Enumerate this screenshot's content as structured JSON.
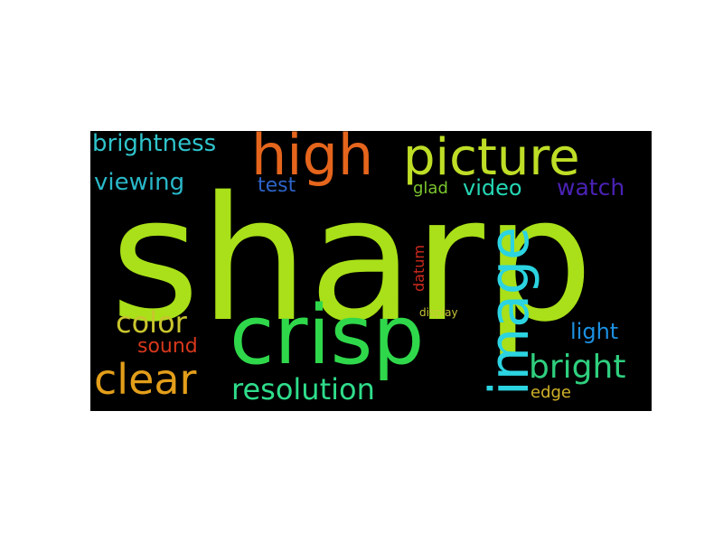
{
  "wordcloud": {
    "background": "#000000",
    "words": {
      "sharp": "sharp",
      "high": "high",
      "picture": "picture",
      "brightness": "brightness",
      "viewing": "viewing",
      "test": "test",
      "glad": "glad",
      "video": "video",
      "watch": "watch",
      "crisp": "crisp",
      "image": "image",
      "datum": "datum",
      "display": "display",
      "color": "color",
      "sound": "sound",
      "clear": "clear",
      "resolution": "resolution",
      "light": "light",
      "bright": "bright",
      "edge": "edge"
    }
  }
}
